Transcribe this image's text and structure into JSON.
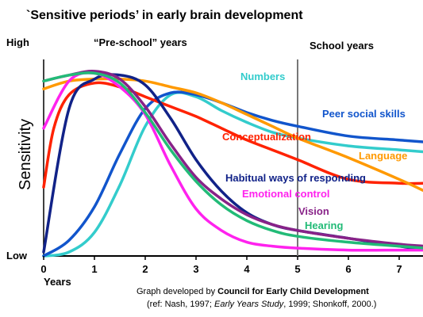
{
  "title": "`Sensitive periods’ in early brain development",
  "ylabel": "Sensitivity",
  "y_high_label": "High",
  "y_low_label": "Low",
  "x_axis_title": "Years",
  "preschool_label": "“Pre-school” years",
  "school_label": "School years",
  "credit": {
    "line1_prefix": "Graph developed by ",
    "line1_org": "Council for Early Child Development",
    "line2_a": "(ref: Nash, 1997; ",
    "line2_italic": "Early Years Study",
    "line2_b": ", 1999; Shonkoff, 2000.)"
  },
  "chart_data": {
    "type": "line",
    "title": "`Sensitive periods’ in early brain development",
    "xlabel": "Years",
    "ylabel": "Sensitivity",
    "xlim": [
      0,
      7.5
    ],
    "ylim": [
      0,
      10
    ],
    "x_ticks": [
      "0",
      "1",
      "2",
      "3",
      "4",
      "5",
      "6",
      "7"
    ],
    "y_tick_labels": [
      "Low",
      "High"
    ],
    "grid": false,
    "divider_x": 5,
    "series": [
      {
        "name": "Numbers",
        "color": "#33cccc",
        "points": [
          [
            0,
            0
          ],
          [
            0.5,
            0.2
          ],
          [
            1,
            1.2
          ],
          [
            1.5,
            3.6
          ],
          [
            2,
            6.6
          ],
          [
            2.5,
            8.2
          ],
          [
            3,
            8.1
          ],
          [
            3.5,
            7.4
          ],
          [
            4,
            6.8
          ],
          [
            4.5,
            6.3
          ],
          [
            5,
            6.0
          ],
          [
            6,
            5.6
          ],
          [
            7,
            5.4
          ],
          [
            7.5,
            5.3
          ]
        ]
      },
      {
        "name": "Peer social skills",
        "color": "#1155cc",
        "points": [
          [
            0,
            0
          ],
          [
            0.5,
            0.8
          ],
          [
            1,
            2.5
          ],
          [
            1.5,
            5.2
          ],
          [
            2,
            7.5
          ],
          [
            2.5,
            8.3
          ],
          [
            3,
            8.2
          ],
          [
            3.5,
            7.8
          ],
          [
            4,
            7.3
          ],
          [
            4.5,
            6.9
          ],
          [
            5,
            6.6
          ],
          [
            6,
            6.1
          ],
          [
            7,
            5.9
          ],
          [
            7.5,
            5.8
          ]
        ]
      },
      {
        "name": "Conceptualization",
        "color": "#ff2200",
        "points": [
          [
            0,
            3.5
          ],
          [
            0.2,
            6.5
          ],
          [
            0.5,
            8.2
          ],
          [
            1,
            8.8
          ],
          [
            1.5,
            8.6
          ],
          [
            2,
            8.1
          ],
          [
            2.5,
            7.6
          ],
          [
            3,
            7.1
          ],
          [
            3.5,
            6.5
          ],
          [
            4,
            5.9
          ],
          [
            4.5,
            5.4
          ],
          [
            5,
            4.9
          ],
          [
            6,
            3.9
          ],
          [
            7,
            3.7
          ],
          [
            7.5,
            3.7
          ]
        ]
      },
      {
        "name": "Language",
        "color": "#ff9900",
        "points": [
          [
            0,
            8.5
          ],
          [
            0.5,
            8.9
          ],
          [
            1,
            9.0
          ],
          [
            1.5,
            9.0
          ],
          [
            2,
            8.9
          ],
          [
            2.5,
            8.6
          ],
          [
            3,
            8.3
          ],
          [
            3.5,
            7.8
          ],
          [
            4,
            7.2
          ],
          [
            4.5,
            6.6
          ],
          [
            5,
            6.0
          ],
          [
            6,
            5.0
          ],
          [
            7,
            3.9
          ],
          [
            7.5,
            3.3
          ]
        ]
      },
      {
        "name": "Habitual ways of responding",
        "color": "#112288",
        "points": [
          [
            0,
            0.2
          ],
          [
            0.5,
            7.5
          ],
          [
            1,
            9.0
          ],
          [
            1.5,
            9.2
          ],
          [
            2,
            8.7
          ],
          [
            2.5,
            7.0
          ],
          [
            3,
            4.9
          ],
          [
            3.5,
            3.3
          ],
          [
            4,
            2.2
          ],
          [
            4.5,
            1.6
          ],
          [
            5,
            1.3
          ],
          [
            6,
            0.9
          ],
          [
            7,
            0.5
          ],
          [
            7.5,
            0.3
          ]
        ]
      },
      {
        "name": "Emotional control",
        "color": "#ff22ee",
        "points": [
          [
            0,
            6.5
          ],
          [
            0.5,
            8.9
          ],
          [
            1,
            9.3
          ],
          [
            1.5,
            8.6
          ],
          [
            2,
            7.2
          ],
          [
            2.5,
            4.6
          ],
          [
            3,
            2.4
          ],
          [
            3.5,
            1.3
          ],
          [
            4,
            0.7
          ],
          [
            4.5,
            0.5
          ],
          [
            5,
            0.4
          ],
          [
            6,
            0.3
          ],
          [
            7,
            0.3
          ],
          [
            7.5,
            0.3
          ]
        ]
      },
      {
        "name": "Vision",
        "color": "#882288",
        "points": [
          [
            0,
            8.9
          ],
          [
            0.5,
            9.2
          ],
          [
            1,
            9.4
          ],
          [
            1.5,
            9.0
          ],
          [
            2,
            7.6
          ],
          [
            2.5,
            5.7
          ],
          [
            3,
            4.0
          ],
          [
            3.5,
            2.9
          ],
          [
            4,
            2.1
          ],
          [
            4.5,
            1.6
          ],
          [
            5,
            1.3
          ],
          [
            6,
            0.9
          ],
          [
            7,
            0.6
          ],
          [
            7.5,
            0.5
          ]
        ]
      },
      {
        "name": "Hearing",
        "color": "#22bb77",
        "points": [
          [
            0,
            8.9
          ],
          [
            0.5,
            9.2
          ],
          [
            1,
            9.3
          ],
          [
            1.5,
            8.8
          ],
          [
            2,
            7.3
          ],
          [
            2.5,
            5.4
          ],
          [
            3,
            3.8
          ],
          [
            3.5,
            2.6
          ],
          [
            4,
            1.8
          ],
          [
            4.5,
            1.3
          ],
          [
            5,
            1.0
          ],
          [
            6,
            0.7
          ],
          [
            7,
            0.5
          ],
          [
            7.5,
            0.4
          ]
        ]
      }
    ]
  }
}
